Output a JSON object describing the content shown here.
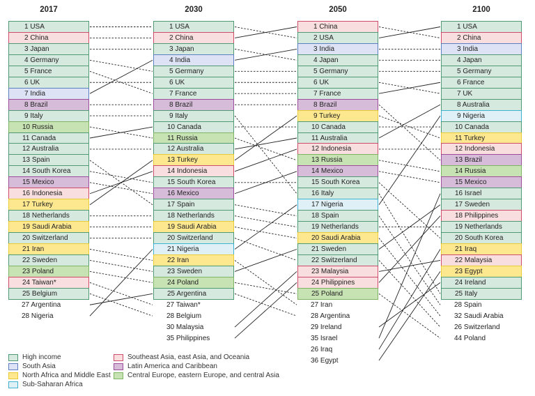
{
  "categories": {
    "H": {
      "label": "High income",
      "fill": "#d6e9df",
      "border": "#4f9a72"
    },
    "S": {
      "label": "South Asia",
      "fill": "#dde3f4",
      "border": "#5b7fc2"
    },
    "M": {
      "label": "North Africa and Middle East",
      "fill": "#fde88f",
      "border": "#e9cc35"
    },
    "A": {
      "label": "Sub-Saharan Africa",
      "fill": "#dff1f6",
      "border": "#3cb1d2"
    },
    "E": {
      "label": "Southeast Asia, east Asia, and Oceania",
      "fill": "#f8dede",
      "border": "#d04a6a"
    },
    "L": {
      "label": "Latin America and Caribbean",
      "fill": "#d6bcd9",
      "border": "#9b4c9b"
    },
    "C": {
      "label": "Central Europe, eastern Europe, and central Asia",
      "fill": "#c7e2b3",
      "border": "#7eb464"
    }
  },
  "legend_order": [
    [
      "H",
      "S",
      "M",
      "A"
    ],
    [
      "E",
      "L",
      "C"
    ]
  ],
  "columns": [
    {
      "year": "2017",
      "top": [
        [
          "USA",
          "H"
        ],
        [
          "China",
          "E"
        ],
        [
          "Japan",
          "H"
        ],
        [
          "Germany",
          "H"
        ],
        [
          "France",
          "H"
        ],
        [
          "UK",
          "H"
        ],
        [
          "India",
          "S"
        ],
        [
          "Brazil",
          "L"
        ],
        [
          "Italy",
          "H"
        ],
        [
          "Russia",
          "C"
        ],
        [
          "Canada",
          "H"
        ],
        [
          "Australia",
          "H"
        ],
        [
          "Spain",
          "H"
        ],
        [
          "South Korea",
          "H"
        ],
        [
          "Mexico",
          "L"
        ],
        [
          "Indonesia",
          "E"
        ],
        [
          "Turkey",
          "M"
        ],
        [
          "Netherlands",
          "H"
        ],
        [
          "Saudi Arabia",
          "M"
        ],
        [
          "Switzerland",
          "H"
        ],
        [
          "Iran",
          "M"
        ],
        [
          "Sweden",
          "H"
        ],
        [
          "Poland",
          "C"
        ],
        [
          "Taiwan*",
          "E"
        ],
        [
          "Belgium",
          "H"
        ]
      ],
      "extra": [
        [
          27,
          "Argentina"
        ],
        [
          28,
          "Nigeria"
        ]
      ]
    },
    {
      "year": "2030",
      "top": [
        [
          "USA",
          "H"
        ],
        [
          "China",
          "E"
        ],
        [
          "Japan",
          "H"
        ],
        [
          "India",
          "S"
        ],
        [
          "Germany",
          "H"
        ],
        [
          "UK",
          "H"
        ],
        [
          "France",
          "H"
        ],
        [
          "Brazil",
          "L"
        ],
        [
          "Italy",
          "H"
        ],
        [
          "Canada",
          "H"
        ],
        [
          "Russia",
          "C"
        ],
        [
          "Australia",
          "H"
        ],
        [
          "Turkey",
          "M"
        ],
        [
          "Indonesia",
          "E"
        ],
        [
          "South Korea",
          "H"
        ],
        [
          "Mexico",
          "L"
        ],
        [
          "Spain",
          "H"
        ],
        [
          "Netherlands",
          "H"
        ],
        [
          "Saudi Arabia",
          "M"
        ],
        [
          "Switzerland",
          "H"
        ],
        [
          "Nigeria",
          "A"
        ],
        [
          "Iran",
          "M"
        ],
        [
          "Sweden",
          "H"
        ],
        [
          "Poland",
          "C"
        ],
        [
          "Argentina",
          "H"
        ]
      ],
      "extra": [
        [
          27,
          "Taiwan*"
        ],
        [
          28,
          "Belgium"
        ],
        [
          30,
          "Malaysia"
        ],
        [
          35,
          "Philippines"
        ]
      ]
    },
    {
      "year": "2050",
      "top": [
        [
          "China",
          "E"
        ],
        [
          "USA",
          "H"
        ],
        [
          "India",
          "S"
        ],
        [
          "Japan",
          "H"
        ],
        [
          "Germany",
          "H"
        ],
        [
          "UK",
          "H"
        ],
        [
          "France",
          "H"
        ],
        [
          "Brazil",
          "L"
        ],
        [
          "Turkey",
          "M"
        ],
        [
          "Canada",
          "H"
        ],
        [
          "Australia",
          "H"
        ],
        [
          "Indonesia",
          "E"
        ],
        [
          "Russia",
          "C"
        ],
        [
          "Mexico",
          "L"
        ],
        [
          "South Korea",
          "H"
        ],
        [
          "Italy",
          "H"
        ],
        [
          "Nigeria",
          "A"
        ],
        [
          "Spain",
          "H"
        ],
        [
          "Netherlands",
          "H"
        ],
        [
          "Saudi Arabia",
          "M"
        ],
        [
          "Sweden",
          "H"
        ],
        [
          "Switzerland",
          "H"
        ],
        [
          "Malaysia",
          "E"
        ],
        [
          "Philippines",
          "E"
        ],
        [
          "Poland",
          "C"
        ]
      ],
      "extra": [
        [
          27,
          "Iran"
        ],
        [
          28,
          "Argentina"
        ],
        [
          29,
          "Ireland"
        ],
        [
          35,
          "Israel"
        ],
        [
          26,
          "Iraq"
        ],
        [
          36,
          "Egypt"
        ]
      ]
    },
    {
      "year": "2100",
      "top": [
        [
          "USA",
          "H"
        ],
        [
          "China",
          "E"
        ],
        [
          "India",
          "S"
        ],
        [
          "Japan",
          "H"
        ],
        [
          "Germany",
          "H"
        ],
        [
          "France",
          "H"
        ],
        [
          "UK",
          "H"
        ],
        [
          "Australia",
          "H"
        ],
        [
          "Nigeria",
          "A"
        ],
        [
          "Canada",
          "H"
        ],
        [
          "Turkey",
          "M"
        ],
        [
          "Indonesia",
          "E"
        ],
        [
          "Brazil",
          "L"
        ],
        [
          "Russia",
          "C"
        ],
        [
          "Mexico",
          "L"
        ],
        [
          "Israel",
          "H"
        ],
        [
          "Sweden",
          "H"
        ],
        [
          "Philippines",
          "E"
        ],
        [
          "Netherlands",
          "H"
        ],
        [
          "South Korea",
          "H"
        ],
        [
          "Iraq",
          "M"
        ],
        [
          "Malaysia",
          "E"
        ],
        [
          "Egypt",
          "M"
        ],
        [
          "Ireland",
          "H"
        ],
        [
          "Italy",
          "H"
        ]
      ],
      "extra": [
        [
          28,
          "Spain"
        ],
        [
          32,
          "Saudi Arabia"
        ],
        [
          26,
          "Switzerland"
        ],
        [
          44,
          "Poland"
        ]
      ]
    }
  ]
}
